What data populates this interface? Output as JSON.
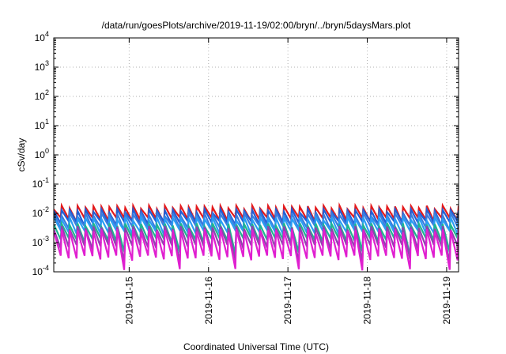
{
  "chart_data": {
    "type": "line",
    "title": "/data/run/goesPlots/archive/2019-11-19/02:00/bryn/../bryn/5daysMars.plot",
    "xlabel": "Coordinated Universal Time (UTC)",
    "ylabel": "cSv/day",
    "x_tick_labels": [
      "2019-11-15",
      "2019-11-16",
      "2019-11-17",
      "2019-11-18",
      "2019-11-19"
    ],
    "x_ticks_day_offset": [
      0.95,
      1.95,
      2.95,
      3.95,
      4.95
    ],
    "xlim_day_offset": [
      0,
      5.1
    ],
    "x_start": "2019-11-14T01:00",
    "y_scale": "log",
    "ylim": [
      0.0001,
      10000
    ],
    "y_tick_labels": [
      {
        "base": "10",
        "exp": "-4"
      },
      {
        "base": "10",
        "exp": "-3"
      },
      {
        "base": "10",
        "exp": "-2"
      },
      {
        "base": "10",
        "exp": "-1"
      },
      {
        "base": "10",
        "exp": "0"
      },
      {
        "base": "10",
        "exp": "1"
      },
      {
        "base": "10",
        "exp": "2"
      },
      {
        "base": "10",
        "exp": "3"
      },
      {
        "base": "10",
        "exp": "4"
      }
    ],
    "grid": true,
    "cycle_days": 0.1,
    "series": [
      {
        "color": "#e41a1c",
        "peak": 0.016,
        "trough": 0.006
      },
      {
        "color": "#1f5fd6",
        "peak": 0.012,
        "trough": 0.0045
      },
      {
        "color": "#3b7ddd",
        "peak": 0.009,
        "trough": 0.0032
      },
      {
        "color": "#2a9df4",
        "peak": 0.0065,
        "trough": 0.0022
      },
      {
        "color": "#1fb58f",
        "peak": 0.004,
        "trough": 0.0012
      },
      {
        "color": "#8e44ad",
        "peak": 0.0032,
        "trough": 0.0007
      },
      {
        "color": "#e01fd0",
        "peak": 0.0025,
        "trough": 0.0003
      }
    ]
  }
}
